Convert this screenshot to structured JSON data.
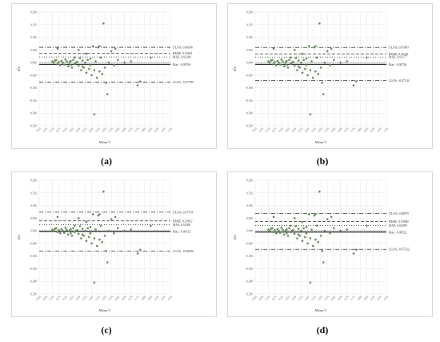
{
  "chart_data": [
    {
      "type": "scatter",
      "panel": "(a)",
      "xlabel": "Mean V",
      "ylabel": "ΔV",
      "xlim": [
        0,
        1.0
      ],
      "ylim": [
        -0.25,
        0.2
      ],
      "xticks": [
        "0.00",
        "0.05",
        "0.10",
        "0.15",
        "0.20",
        "0.25",
        "0.30",
        "0.35",
        "0.40",
        "0.45",
        "0.50",
        "0.55",
        "0.60",
        "0.65",
        "0.70",
        "0.75",
        "0.80",
        "0.85",
        "0.90",
        "0.95",
        "1.00"
      ],
      "yticks": [
        "0.200",
        "0.150",
        "0.100",
        "0.050",
        "0.000",
        "-0.050",
        "-0.100",
        "-0.150",
        "-0.200",
        "-0.250"
      ],
      "lines": [
        {
          "label": "ULOA, 0.06036",
          "value": 0.06036,
          "style": "dashdot"
        },
        {
          "label": "RMSE, 0.03601",
          "value": 0.03601,
          "style": "dashed"
        },
        {
          "label": "MAE, 0.02204",
          "value": 0.02204,
          "style": "dotted"
        },
        {
          "label": "Bias, -0.00706",
          "value": -0.00706,
          "style": "solid"
        },
        {
          "label": "LLOA, -0.07789",
          "value": -0.07789,
          "style": "dashdot"
        }
      ],
      "points": [
        [
          0.1,
          0.005
        ],
        [
          0.11,
          0.0
        ],
        [
          0.12,
          0.008
        ],
        [
          0.13,
          0.01
        ],
        [
          0.14,
          -0.005
        ],
        [
          0.15,
          0.003
        ],
        [
          0.16,
          -0.01
        ],
        [
          0.17,
          0.007
        ],
        [
          0.18,
          0.0
        ],
        [
          0.19,
          -0.008
        ],
        [
          0.2,
          0.012
        ],
        [
          0.21,
          0.004
        ],
        [
          0.22,
          -0.015
        ],
        [
          0.23,
          0.0
        ],
        [
          0.24,
          0.006
        ],
        [
          0.25,
          -0.02
        ],
        [
          0.26,
          0.01
        ],
        [
          0.27,
          -0.005
        ],
        [
          0.28,
          0.0
        ],
        [
          0.29,
          0.003
        ],
        [
          0.3,
          -0.012
        ],
        [
          0.31,
          0.018
        ],
        [
          0.32,
          -0.03
        ],
        [
          0.33,
          0.008
        ],
        [
          0.34,
          -0.02
        ],
        [
          0.35,
          0.0
        ],
        [
          0.36,
          -0.04
        ],
        [
          0.37,
          0.01
        ],
        [
          0.38,
          -0.025
        ],
        [
          0.39,
          0.015
        ],
        [
          0.4,
          -0.05
        ],
        [
          0.41,
          0.065
        ],
        [
          0.42,
          -0.03
        ],
        [
          0.43,
          0.005
        ],
        [
          0.44,
          -0.06
        ],
        [
          0.45,
          0.06
        ],
        [
          0.46,
          -0.035
        ],
        [
          0.47,
          0.02
        ],
        [
          0.48,
          -0.045
        ],
        [
          0.49,
          0.155
        ],
        [
          0.5,
          -0.02
        ],
        [
          0.51,
          -0.08
        ],
        [
          0.52,
          -0.125
        ],
        [
          0.53,
          0.0
        ],
        [
          0.55,
          0.045
        ],
        [
          0.57,
          -0.01
        ],
        [
          0.6,
          0.01
        ],
        [
          0.65,
          0.0
        ],
        [
          0.7,
          0.005
        ],
        [
          0.75,
          -0.09
        ],
        [
          0.77,
          -0.075
        ],
        [
          0.85,
          0.02
        ],
        [
          0.42,
          -0.205
        ],
        [
          0.14,
          0.055
        ],
        [
          0.3,
          0.05
        ],
        [
          0.36,
          0.035
        ],
        [
          0.46,
          0.065
        ],
        [
          0.58,
          0.055
        ],
        [
          0.24,
          -0.01
        ],
        [
          0.33,
          -0.015
        ],
        [
          0.27,
          0.02
        ],
        [
          0.39,
          -0.01
        ]
      ]
    },
    {
      "type": "scatter",
      "panel": "(b)",
      "xlabel": "Mean V",
      "ylabel": "ΔV",
      "xlim": [
        0,
        1.0
      ],
      "ylim": [
        -0.25,
        0.2
      ],
      "xticks": [
        "0.00",
        "0.05",
        "0.10",
        "0.15",
        "0.20",
        "0.25",
        "0.30",
        "0.35",
        "0.40",
        "0.45",
        "0.50",
        "0.55",
        "0.60",
        "0.65",
        "0.70",
        "0.75",
        "0.80",
        "0.85",
        "0.90",
        "0.95",
        "1.00"
      ],
      "yticks": [
        "0.200",
        "0.150",
        "0.100",
        "0.050",
        "0.000",
        "-0.050",
        "-0.100",
        "-0.150",
        "-0.200",
        "-0.250"
      ],
      "lines": [
        {
          "label": "ULOA, 0.05983",
          "value": 0.05983,
          "style": "dashdot"
        },
        {
          "label": "RMSE, 0.03441",
          "value": 0.03441,
          "style": "dashed"
        },
        {
          "label": "MAE, 0.02177",
          "value": 0.02177,
          "style": "dotted"
        },
        {
          "label": "Bias, -0.00726",
          "value": -0.00726,
          "style": "solid"
        },
        {
          "label": "LLOA, -0.07144",
          "value": -0.07144,
          "style": "dashdot"
        }
      ],
      "points": [
        [
          0.1,
          0.005
        ],
        [
          0.11,
          0.0
        ],
        [
          0.12,
          0.008
        ],
        [
          0.13,
          0.01
        ],
        [
          0.14,
          -0.005
        ],
        [
          0.15,
          0.003
        ],
        [
          0.16,
          -0.01
        ],
        [
          0.17,
          0.007
        ],
        [
          0.18,
          0.0
        ],
        [
          0.19,
          -0.008
        ],
        [
          0.2,
          0.012
        ],
        [
          0.21,
          0.004
        ],
        [
          0.22,
          -0.015
        ],
        [
          0.23,
          0.0
        ],
        [
          0.24,
          0.006
        ],
        [
          0.25,
          -0.02
        ],
        [
          0.26,
          0.01
        ],
        [
          0.27,
          -0.005
        ],
        [
          0.28,
          0.0
        ],
        [
          0.29,
          0.003
        ],
        [
          0.3,
          -0.012
        ],
        [
          0.31,
          0.018
        ],
        [
          0.32,
          -0.03
        ],
        [
          0.33,
          0.008
        ],
        [
          0.34,
          -0.02
        ],
        [
          0.35,
          0.0
        ],
        [
          0.36,
          -0.04
        ],
        [
          0.37,
          0.01
        ],
        [
          0.38,
          -0.025
        ],
        [
          0.39,
          0.015
        ],
        [
          0.4,
          -0.05
        ],
        [
          0.41,
          0.065
        ],
        [
          0.42,
          -0.03
        ],
        [
          0.43,
          0.005
        ],
        [
          0.44,
          -0.06
        ],
        [
          0.45,
          0.06
        ],
        [
          0.46,
          -0.035
        ],
        [
          0.47,
          0.02
        ],
        [
          0.48,
          -0.045
        ],
        [
          0.49,
          0.155
        ],
        [
          0.5,
          -0.02
        ],
        [
          0.51,
          -0.08
        ],
        [
          0.52,
          -0.125
        ],
        [
          0.53,
          0.0
        ],
        [
          0.55,
          0.045
        ],
        [
          0.57,
          -0.01
        ],
        [
          0.6,
          0.01
        ],
        [
          0.65,
          0.0
        ],
        [
          0.7,
          0.005
        ],
        [
          0.75,
          -0.09
        ],
        [
          0.77,
          -0.075
        ],
        [
          0.85,
          0.02
        ],
        [
          0.42,
          -0.205
        ],
        [
          0.14,
          0.055
        ],
        [
          0.3,
          0.05
        ],
        [
          0.36,
          0.035
        ],
        [
          0.46,
          0.065
        ],
        [
          0.58,
          0.055
        ],
        [
          0.24,
          -0.01
        ],
        [
          0.33,
          -0.015
        ],
        [
          0.27,
          0.02
        ],
        [
          0.39,
          -0.01
        ]
      ]
    },
    {
      "type": "scatter",
      "panel": "(c)",
      "xlabel": "Mean V",
      "ylabel": "ΔV",
      "xlim": [
        0,
        1.0
      ],
      "ylim": [
        -0.25,
        0.2
      ],
      "xticks": [
        "0.00",
        "0.05",
        "0.10",
        "0.15",
        "0.20",
        "0.25",
        "0.30",
        "0.35",
        "0.40",
        "0.45",
        "0.50",
        "0.55",
        "0.60",
        "0.65",
        "0.70",
        "0.75",
        "0.80",
        "0.85",
        "0.90",
        "0.95",
        "1.00"
      ],
      "yticks": [
        "0.200",
        "0.150",
        "0.100",
        "0.050",
        "0.000",
        "-0.050",
        "-0.100",
        "-0.150",
        "-0.200",
        "-0.250"
      ],
      "lines": [
        {
          "label": "ULOA, 0.07374",
          "value": 0.07374,
          "style": "dashdot"
        },
        {
          "label": "RMSE, 0.03912",
          "value": 0.03912,
          "style": "dashed"
        },
        {
          "label": "MAE, 0.02401",
          "value": 0.02401,
          "style": "dotted"
        },
        {
          "label": "Bias, -0.00312",
          "value": -0.00312,
          "style": "solid"
        },
        {
          "label": "LLOA, -0.08000",
          "value": -0.08,
          "style": "dashdot"
        }
      ],
      "points": [
        [
          0.1,
          0.005
        ],
        [
          0.11,
          0.0
        ],
        [
          0.12,
          0.008
        ],
        [
          0.13,
          0.01
        ],
        [
          0.14,
          -0.005
        ],
        [
          0.15,
          0.003
        ],
        [
          0.16,
          -0.01
        ],
        [
          0.17,
          0.007
        ],
        [
          0.18,
          0.0
        ],
        [
          0.19,
          -0.008
        ],
        [
          0.2,
          0.012
        ],
        [
          0.21,
          0.004
        ],
        [
          0.22,
          -0.015
        ],
        [
          0.23,
          0.0
        ],
        [
          0.24,
          0.006
        ],
        [
          0.25,
          -0.02
        ],
        [
          0.26,
          0.01
        ],
        [
          0.27,
          -0.005
        ],
        [
          0.28,
          0.0
        ],
        [
          0.29,
          0.003
        ],
        [
          0.3,
          -0.012
        ],
        [
          0.31,
          0.018
        ],
        [
          0.32,
          -0.03
        ],
        [
          0.33,
          0.008
        ],
        [
          0.34,
          -0.02
        ],
        [
          0.35,
          0.0
        ],
        [
          0.36,
          -0.04
        ],
        [
          0.37,
          0.01
        ],
        [
          0.38,
          -0.025
        ],
        [
          0.39,
          0.015
        ],
        [
          0.4,
          -0.05
        ],
        [
          0.41,
          0.065
        ],
        [
          0.42,
          -0.03
        ],
        [
          0.43,
          0.005
        ],
        [
          0.44,
          -0.06
        ],
        [
          0.45,
          0.06
        ],
        [
          0.46,
          -0.035
        ],
        [
          0.47,
          0.02
        ],
        [
          0.48,
          -0.045
        ],
        [
          0.49,
          0.155
        ],
        [
          0.5,
          -0.02
        ],
        [
          0.51,
          -0.08
        ],
        [
          0.52,
          -0.125
        ],
        [
          0.53,
          0.0
        ],
        [
          0.55,
          0.045
        ],
        [
          0.57,
          -0.01
        ],
        [
          0.6,
          0.01
        ],
        [
          0.65,
          0.0
        ],
        [
          0.7,
          0.005
        ],
        [
          0.75,
          -0.09
        ],
        [
          0.77,
          -0.075
        ],
        [
          0.85,
          0.02
        ],
        [
          0.42,
          -0.205
        ],
        [
          0.14,
          0.055
        ],
        [
          0.3,
          0.05
        ],
        [
          0.36,
          0.035
        ],
        [
          0.46,
          0.065
        ],
        [
          0.58,
          0.055
        ],
        [
          0.24,
          -0.01
        ],
        [
          0.33,
          -0.015
        ],
        [
          0.27,
          0.02
        ],
        [
          0.39,
          -0.01
        ]
      ]
    },
    {
      "type": "scatter",
      "panel": "(d)",
      "xlabel": "Mean V",
      "ylabel": "ΔV",
      "xlim": [
        0,
        1.0
      ],
      "ylim": [
        -0.25,
        0.2
      ],
      "xticks": [
        "0.00",
        "0.05",
        "0.10",
        "0.15",
        "0.20",
        "0.25",
        "0.30",
        "0.35",
        "0.40",
        "0.45",
        "0.50",
        "0.55",
        "0.60",
        "0.65",
        "0.70",
        "0.75",
        "0.80",
        "0.85",
        "0.90",
        "0.95",
        "1.00"
      ],
      "yticks": [
        "0.200",
        "0.150",
        "0.100",
        "0.050",
        "0.000",
        "-0.050",
        "-0.100",
        "-0.150",
        "-0.200",
        "-0.250"
      ],
      "lines": [
        {
          "label": "ULOA, 0.06879",
          "value": 0.06879,
          "style": "dashdot"
        },
        {
          "label": "RMSE, 0.03669",
          "value": 0.03669,
          "style": "dashed"
        },
        {
          "label": "MAE, 0.02099",
          "value": 0.02099,
          "style": "dotted"
        },
        {
          "label": "Bias, -0.00522",
          "value": -0.00522,
          "style": "solid"
        },
        {
          "label": "LLOA, -0.07322",
          "value": -0.07322,
          "style": "dashdot"
        }
      ],
      "points": [
        [
          0.1,
          0.005
        ],
        [
          0.11,
          0.0
        ],
        [
          0.12,
          0.008
        ],
        [
          0.13,
          0.01
        ],
        [
          0.14,
          -0.005
        ],
        [
          0.15,
          0.003
        ],
        [
          0.16,
          -0.01
        ],
        [
          0.17,
          0.007
        ],
        [
          0.18,
          0.0
        ],
        [
          0.19,
          -0.008
        ],
        [
          0.2,
          0.012
        ],
        [
          0.21,
          0.004
        ],
        [
          0.22,
          -0.015
        ],
        [
          0.23,
          0.0
        ],
        [
          0.24,
          0.006
        ],
        [
          0.25,
          -0.02
        ],
        [
          0.26,
          0.01
        ],
        [
          0.27,
          -0.005
        ],
        [
          0.28,
          0.0
        ],
        [
          0.29,
          0.003
        ],
        [
          0.3,
          -0.012
        ],
        [
          0.31,
          0.018
        ],
        [
          0.32,
          -0.03
        ],
        [
          0.33,
          0.008
        ],
        [
          0.34,
          -0.02
        ],
        [
          0.35,
          0.0
        ],
        [
          0.36,
          -0.04
        ],
        [
          0.37,
          0.01
        ],
        [
          0.38,
          -0.025
        ],
        [
          0.39,
          0.015
        ],
        [
          0.4,
          -0.05
        ],
        [
          0.41,
          0.065
        ],
        [
          0.42,
          -0.03
        ],
        [
          0.43,
          0.005
        ],
        [
          0.44,
          -0.06
        ],
        [
          0.45,
          0.06
        ],
        [
          0.46,
          -0.035
        ],
        [
          0.47,
          0.02
        ],
        [
          0.48,
          -0.045
        ],
        [
          0.49,
          0.155
        ],
        [
          0.5,
          -0.02
        ],
        [
          0.51,
          -0.08
        ],
        [
          0.52,
          -0.125
        ],
        [
          0.53,
          0.0
        ],
        [
          0.55,
          0.045
        ],
        [
          0.57,
          -0.01
        ],
        [
          0.6,
          0.01
        ],
        [
          0.65,
          0.0
        ],
        [
          0.7,
          0.005
        ],
        [
          0.75,
          -0.09
        ],
        [
          0.77,
          -0.075
        ],
        [
          0.85,
          0.02
        ],
        [
          0.42,
          -0.205
        ],
        [
          0.14,
          0.055
        ],
        [
          0.3,
          0.05
        ],
        [
          0.36,
          0.035
        ],
        [
          0.46,
          0.065
        ],
        [
          0.58,
          0.055
        ],
        [
          0.24,
          -0.01
        ],
        [
          0.33,
          -0.015
        ],
        [
          0.27,
          0.02
        ],
        [
          0.39,
          -0.01
        ]
      ]
    }
  ],
  "colors": {
    "point": "#6b8f5e",
    "line": "#333333",
    "grid": "#e6e6e6",
    "text": "#555555"
  },
  "captions": [
    "(a)",
    "(b)",
    "(c)",
    "(d)"
  ]
}
